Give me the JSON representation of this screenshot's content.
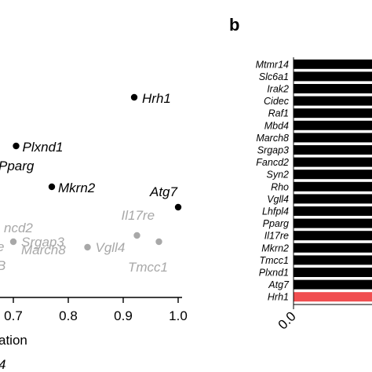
{
  "panel_b_label": "b",
  "x_axis_label_fragment": "ation",
  "footer_fragment": "4",
  "colors": {
    "highlight": "#000000",
    "muted": "#a8a8a8",
    "bar": "#000000",
    "bar_highlight": "#f04e50"
  },
  "chart_data": [
    {
      "type": "scatter",
      "x_ticks": [
        "0.7",
        "0.8",
        "0.9",
        "1.0"
      ],
      "xlim": [
        0.65,
        1.02
      ],
      "xlabel": "ation",
      "points": [
        {
          "label": "Hrh1",
          "x": 0.92,
          "group": "highlight"
        },
        {
          "label": "Plxnd1",
          "x": 0.705,
          "group": "highlight"
        },
        {
          "label": "Pparg",
          "x": 0.69,
          "group": "highlight"
        },
        {
          "label": "Mkrn2",
          "x": 0.77,
          "group": "highlight"
        },
        {
          "label": "Atg7",
          "x": 1.0,
          "group": "highlight"
        },
        {
          "label": "Il17re",
          "x": 0.925,
          "group": "muted"
        },
        {
          "label": "",
          "x": 0.965,
          "group": "muted"
        },
        {
          "label": "Tmcc1",
          "x": null,
          "group": "muted"
        },
        {
          "label": "ncd2",
          "x": null,
          "group": "muted"
        },
        {
          "label": "Srgap3",
          "x": 0.7,
          "group": "muted"
        },
        {
          "label": "March8",
          "x": 0.7,
          "group": "muted"
        },
        {
          "label": "Vgll4",
          "x": 0.835,
          "group": "muted"
        }
      ]
    },
    {
      "type": "bar",
      "orientation": "horizontal",
      "categories": [
        "Mtmr14",
        "Slc6a1",
        "Irak2",
        "Cidec",
        "Raf1",
        "Mbd4",
        "March8",
        "Srgap3",
        "Fancd2",
        "Syn2",
        "Rho",
        "Vgll4",
        "Lhfpl4",
        "Pparg",
        "Il17re",
        "Mkrn2",
        "Tmcc1",
        "Plxnd1",
        "Atg7",
        "Hrh1"
      ],
      "highlight": "Hrh1",
      "x_ticks": [
        "0.0"
      ]
    }
  ]
}
